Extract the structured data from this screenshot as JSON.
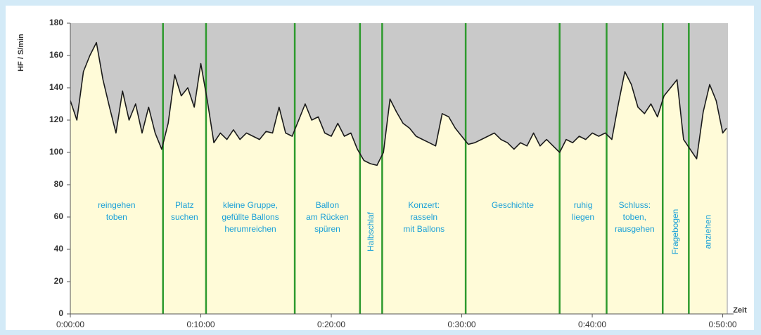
{
  "chart_data": {
    "type": "line",
    "y_label": "HF / S/min",
    "x_label": "Zeit",
    "xlim": [
      0,
      50.4
    ],
    "ylim": [
      0,
      180
    ],
    "xticks": [
      {
        "value": 0,
        "label": "0:00:00"
      },
      {
        "value": 10,
        "label": "0:10:00"
      },
      {
        "value": 20,
        "label": "0:20:00"
      },
      {
        "value": 30,
        "label": "0:30:00"
      },
      {
        "value": 40,
        "label": "0:40:00"
      },
      {
        "value": 50,
        "label": "0:50:00"
      }
    ],
    "yticks": [
      0,
      20,
      40,
      60,
      80,
      100,
      120,
      140,
      160,
      180
    ],
    "color": "#1a1a1a",
    "fill_below": "#fffbd8",
    "fill_above": "#c9c9c9",
    "boundary_color": "#2e9a2e",
    "x": [
      0,
      0.5,
      1,
      1.5,
      2,
      2.5,
      3,
      3.5,
      4,
      4.5,
      5,
      5.5,
      6,
      6.5,
      7,
      7.5,
      8,
      8.5,
      9,
      9.5,
      10,
      10.5,
      11,
      11.5,
      12,
      12.5,
      13,
      13.5,
      14,
      14.5,
      15,
      15.5,
      16,
      16.5,
      17,
      17.5,
      18,
      18.5,
      19,
      19.5,
      20,
      20.5,
      21,
      21.5,
      22,
      22.5,
      23,
      23.5,
      24,
      24.5,
      25,
      25.5,
      26,
      26.5,
      27,
      27.5,
      28,
      28.5,
      29,
      29.5,
      30,
      30.5,
      31,
      31.5,
      32,
      32.5,
      33,
      33.5,
      34,
      34.5,
      35,
      35.5,
      36,
      36.5,
      37,
      37.5,
      38,
      38.5,
      39,
      39.5,
      40,
      40.5,
      41,
      41.5,
      42,
      42.5,
      43,
      43.5,
      44,
      44.5,
      45,
      45.5,
      46,
      46.5,
      47,
      47.5,
      48,
      48.5,
      49,
      49.5,
      50,
      50.3
    ],
    "values": [
      132,
      120,
      150,
      160,
      168,
      145,
      128,
      112,
      138,
      120,
      130,
      112,
      128,
      112,
      102,
      118,
      148,
      135,
      140,
      128,
      155,
      132,
      106,
      112,
      108,
      114,
      108,
      112,
      110,
      108,
      113,
      112,
      128,
      112,
      110,
      120,
      130,
      120,
      122,
      112,
      110,
      118,
      110,
      112,
      102,
      95,
      93,
      92,
      100,
      133,
      125,
      118,
      115,
      110,
      108,
      106,
      104,
      124,
      122,
      115,
      110,
      105,
      106,
      108,
      110,
      112,
      108,
      106,
      102,
      106,
      104,
      112,
      104,
      108,
      104,
      100,
      108,
      106,
      110,
      108,
      112,
      110,
      112,
      108,
      130,
      150,
      142,
      128,
      124,
      130,
      122,
      135,
      140,
      145,
      108,
      102,
      96,
      125,
      142,
      132,
      112,
      115
    ],
    "phase_boundaries": [
      7.1,
      10.4,
      17.2,
      22.2,
      23.9,
      30.3,
      37.5,
      41.1,
      45.4,
      47.4
    ],
    "phases": [
      {
        "lines": [
          "reingehen",
          "toben"
        ]
      },
      {
        "lines": [
          "Platz",
          "suchen"
        ]
      },
      {
        "lines": [
          "kleine Gruppe,",
          "gefüllte Ballons",
          "herumreichen"
        ]
      },
      {
        "lines": [
          "Ballon",
          "am Rücken",
          "spüren"
        ]
      },
      {
        "lines": [
          "Halbschlaf"
        ],
        "rotated": true
      },
      {
        "lines": [
          "Konzert:",
          "rasseln",
          "mit Ballons"
        ]
      },
      {
        "lines": [
          "Geschichte"
        ]
      },
      {
        "lines": [
          "ruhig",
          "liegen"
        ]
      },
      {
        "lines": [
          "Schluss:",
          "toben,",
          "rausgehen"
        ]
      },
      {
        "lines": [
          "Fragebogen"
        ],
        "rotated": true
      },
      {
        "lines": [
          "anziehen"
        ],
        "rotated": true
      }
    ]
  }
}
